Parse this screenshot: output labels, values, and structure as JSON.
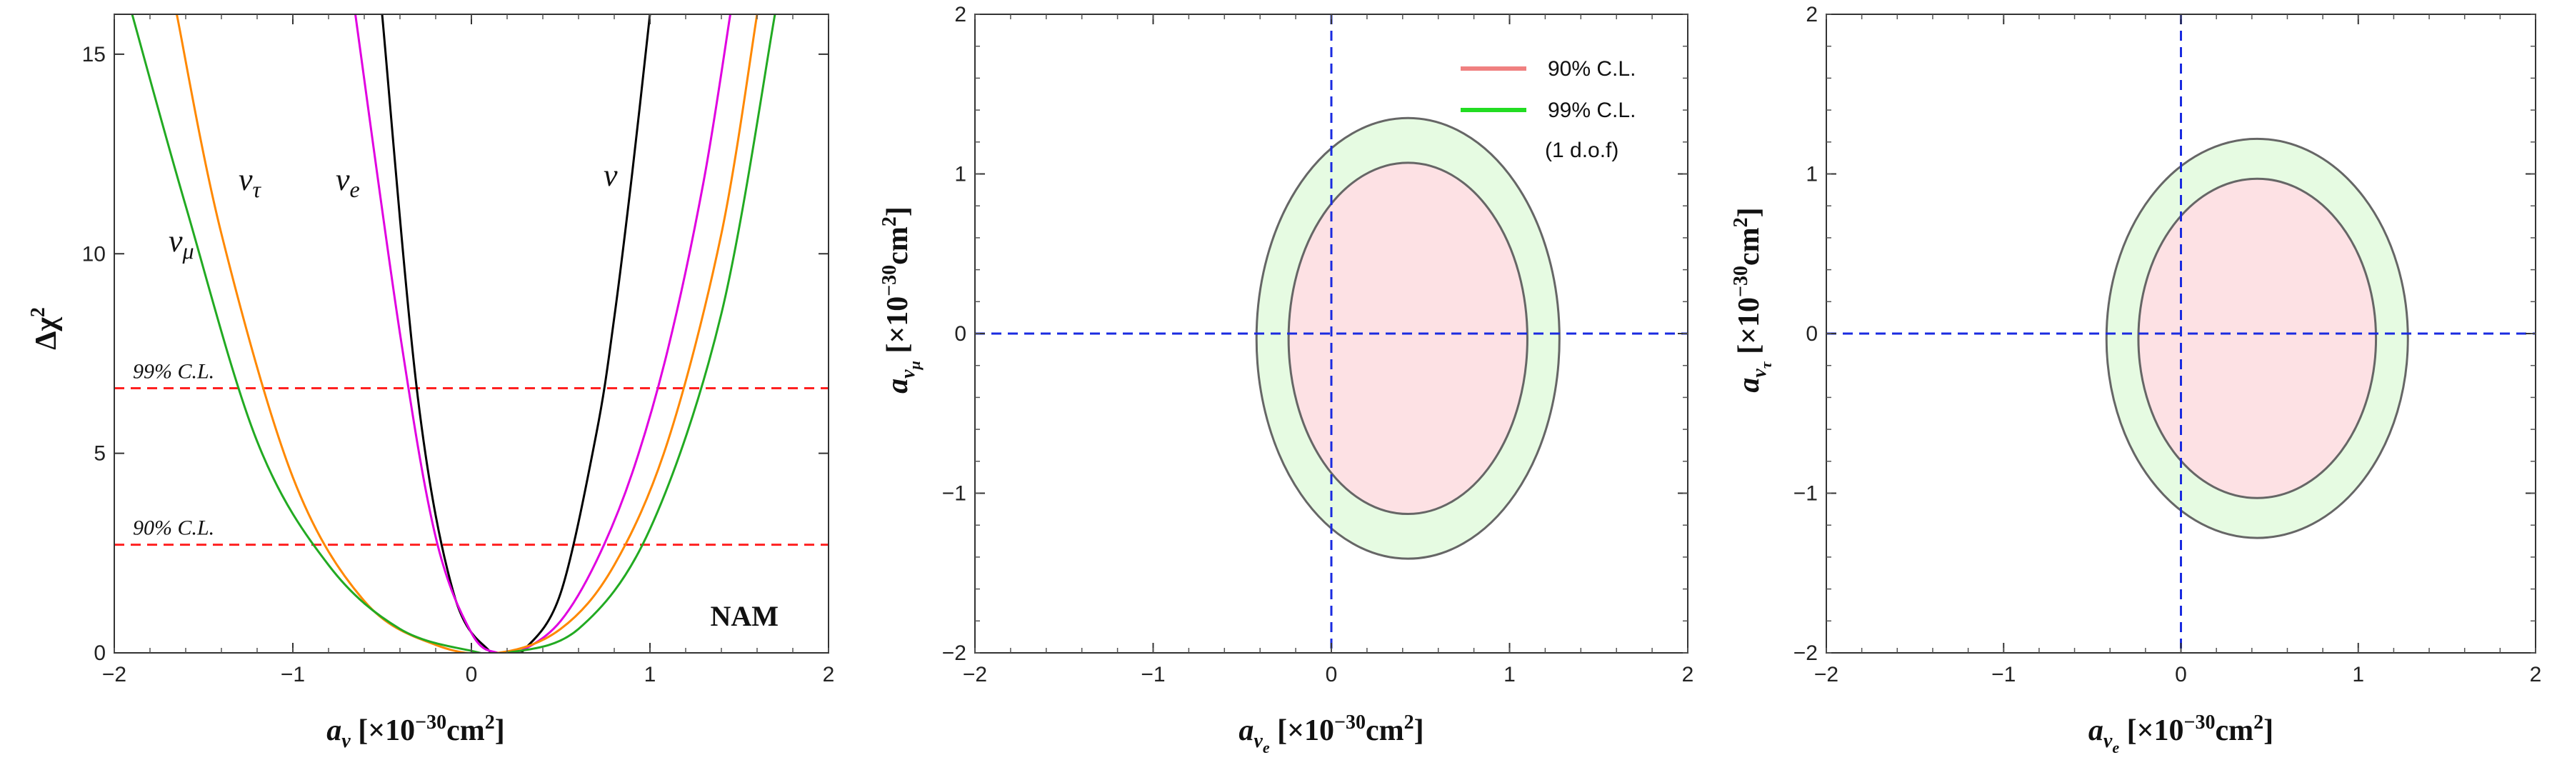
{
  "chart_data": [
    {
      "type": "line",
      "xlabel": "a_ν [×10^-30 cm^2]",
      "ylabel": "Δχ^2",
      "xlim": [
        -2,
        2
      ],
      "ylim": [
        0,
        16
      ],
      "xticks": [
        "−2",
        "−1",
        "0",
        "1",
        "2"
      ],
      "yticks": [
        "0",
        "5",
        "10",
        "15"
      ],
      "annotation": "NAM",
      "series": [
        {
          "name": "ν",
          "color": "#000000",
          "x": [
            -0.5,
            -0.3,
            -0.1,
            0.1,
            0.2,
            0.3,
            0.5,
            0.7,
            0.8,
            0.9,
            1.0
          ],
          "y": [
            16.0,
            6.4,
            1.5,
            0.05,
            0.0,
            0.1,
            1.5,
            5.5,
            8.4,
            12.0,
            16.0
          ]
        },
        {
          "name": "ν_e",
          "color": "#e000e0",
          "x": [
            -0.65,
            -0.4,
            -0.2,
            0.0,
            0.15,
            0.3,
            0.5,
            0.7,
            0.9,
            1.1,
            1.3,
            1.45
          ],
          "y": [
            16.0,
            8.0,
            2.9,
            0.5,
            0.0,
            0.1,
            0.8,
            2.3,
            4.5,
            7.6,
            11.8,
            16.0
          ]
        },
        {
          "name": "ν_τ",
          "color": "#ff8800",
          "x": [
            -1.65,
            -1.4,
            -1.0,
            -0.6,
            -0.2,
            0.15,
            0.5,
            0.8,
            1.1,
            1.4,
            1.6
          ],
          "y": [
            16.0,
            10.5,
            4.4,
            1.3,
            0.2,
            0.0,
            0.6,
            2.2,
            5.3,
            10.5,
            16.0
          ]
        },
        {
          "name": "ν_μ",
          "color": "#22aa22",
          "x": [
            -1.9,
            -1.6,
            -1.2,
            -0.8,
            -0.4,
            0.0,
            0.2,
            0.6,
            1.0,
            1.4,
            1.7
          ],
          "y": [
            16.0,
            11.2,
            5.3,
            2.2,
            0.6,
            0.05,
            0.0,
            0.6,
            3.1,
            8.5,
            16.0
          ]
        }
      ],
      "reference_lines": [
        {
          "y": 6.63,
          "label": "99% C.L.",
          "color": "#ff2020"
        },
        {
          "y": 2.71,
          "label": "90% C.L.",
          "color": "#ff2020"
        }
      ]
    },
    {
      "type": "contour",
      "xlabel": "a_νe [×10^-30 cm^2]",
      "ylabel": "a_νμ [×10^-30 cm^2]",
      "xlim": [
        -2,
        2
      ],
      "ylim": [
        -2,
        2
      ],
      "ticks": [
        "−2",
        "−1",
        "0",
        "1",
        "2"
      ],
      "regions": [
        {
          "label": "99% C.L.",
          "center": [
            0.43,
            -0.03
          ],
          "rx": 0.85,
          "ry": 1.38,
          "fill": "#e6fbe2"
        },
        {
          "label": "90% C.L.",
          "center": [
            0.43,
            -0.03
          ],
          "rx": 0.67,
          "ry": 1.1,
          "fill": "#fde1e4"
        }
      ],
      "legend": {
        "position": "top-right",
        "items": [
          {
            "label": "90% C.L.",
            "color": "#f08080"
          },
          {
            "label": "99% C.L.",
            "color": "#22dd22"
          }
        ],
        "note": "(1 d.o.f)"
      }
    },
    {
      "type": "contour",
      "xlabel": "a_νe [×10^-30 cm^2]",
      "ylabel": "a_ντ [×10^-30 cm^2]",
      "xlim": [
        -2,
        2
      ],
      "ylim": [
        -2,
        2
      ],
      "ticks": [
        "−2",
        "−1",
        "0",
        "1",
        "2"
      ],
      "regions": [
        {
          "label": "99% C.L.",
          "center": [
            0.43,
            -0.03
          ],
          "rx": 0.85,
          "ry": 1.25,
          "fill": "#e6fbe2"
        },
        {
          "label": "90% C.L.",
          "center": [
            0.43,
            -0.03
          ],
          "rx": 0.67,
          "ry": 1.0,
          "fill": "#fde1e4"
        }
      ]
    }
  ]
}
